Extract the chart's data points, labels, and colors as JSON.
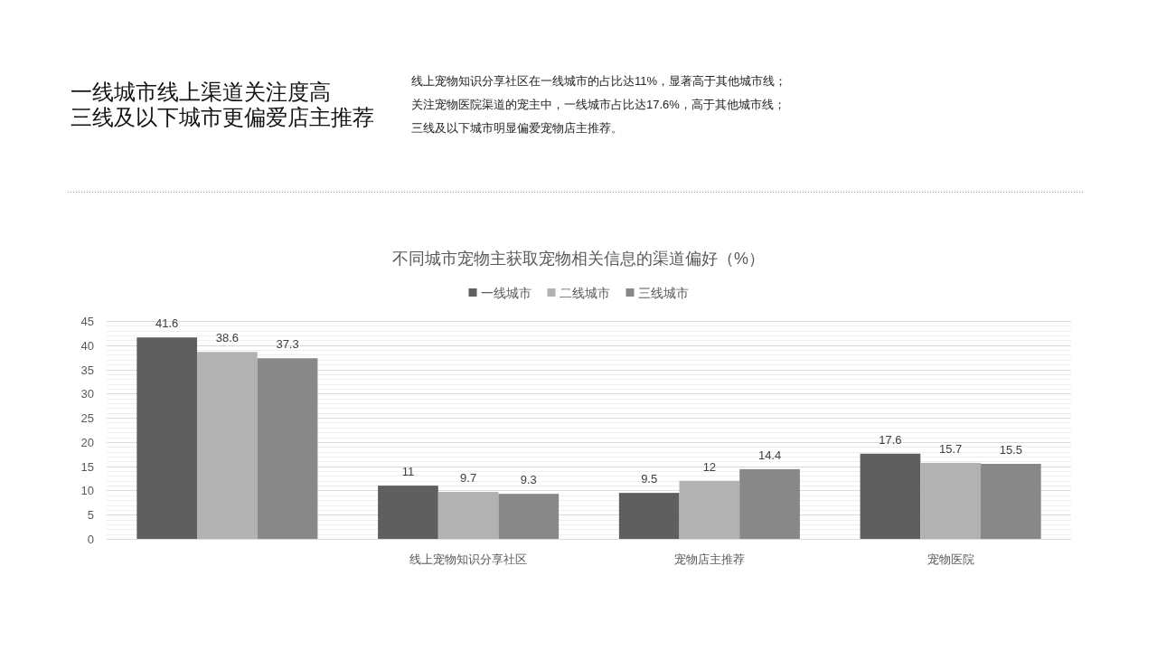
{
  "chart_data": {
    "type": "bar",
    "title": "不同城市宠物主获取宠物相关信息的渠道偏好（%）",
    "annotations": [
      "一线城市线上渠道关注度高",
      "三线及以下城市更偏爱店主推荐",
      "线上宠物知识分享社区在一线城市的占比达11%，显著高于其他城市线；",
      "关注宠物医院渠道的宠主中，一线城市占比达17.6%，高于其他城市线；",
      "三线及以下城市明显偏爱宠物店主推荐。"
    ],
    "categories": [
      null,
      "线上宠物知识分享社区",
      "宠物店主推荐",
      "宠物医院"
    ],
    "series": [
      {
        "name": "一线城市",
        "color": "#5f5f5f",
        "values": [
          41.6,
          11,
          9.5,
          17.6
        ]
      },
      {
        "name": "二线城市",
        "color": "#b2b2b2",
        "values": [
          38.6,
          9.7,
          12,
          15.7
        ]
      },
      {
        "name": "三线城市",
        "color": "#888888",
        "values": [
          37.3,
          9.3,
          14.4,
          15.5
        ]
      }
    ],
    "ylim": [
      0,
      45
    ],
    "yticks": [
      0,
      {
        "value": 1,
        "label": null
      },
      {
        "value": 2,
        "label": null
      },
      {
        "value": 3,
        "label": null
      },
      {
        "value": 4,
        "label": null
      },
      5,
      {
        "value": 6,
        "label": null
      },
      {
        "value": 7,
        "label": null
      },
      {
        "value": 8,
        "label": null
      },
      {
        "value": 9,
        "label": null
      },
      10,
      {
        "value": 11,
        "label": null
      },
      {
        "value": 12,
        "label": null
      },
      {
        "value": 13,
        "label": null
      },
      {
        "value": 14,
        "label": null
      },
      15,
      {
        "value": 16,
        "label": null
      },
      {
        "value": 17,
        "label": null
      },
      {
        "value": 18,
        "label": null
      },
      {
        "value": 19,
        "label": null
      },
      20,
      {
        "value": 21,
        "label": null
      },
      {
        "value": 22,
        "label": null
      },
      {
        "value": 23,
        "label": null
      },
      {
        "value": 24,
        "label": null
      },
      25,
      {
        "value": 26,
        "label": null
      },
      {
        "value": 27,
        "label": null
      },
      {
        "value": 28,
        "label": null
      },
      {
        "value": 29,
        "label": null
      },
      30,
      {
        "value": 31,
        "label": null
      },
      {
        "value": 32,
        "label": null
      },
      {
        "value": 33,
        "label": null
      },
      {
        "value": 34,
        "label": null
      },
      35,
      {
        "value": 36,
        "label": null
      },
      {
        "value": 37,
        "label": null
      },
      {
        "value": 38,
        "label": null
      },
      {
        "value": 39,
        "label": null
      },
      40,
      {
        "value": 41,
        "label": null
      },
      {
        "value": 42,
        "label": null
      },
      {
        "value": 43,
        "label": null
      },
      {
        "value": 44,
        "label": null
      },
      45
    ],
    "grid": "y",
    "legend": "top",
    "data_labels": true
  }
}
